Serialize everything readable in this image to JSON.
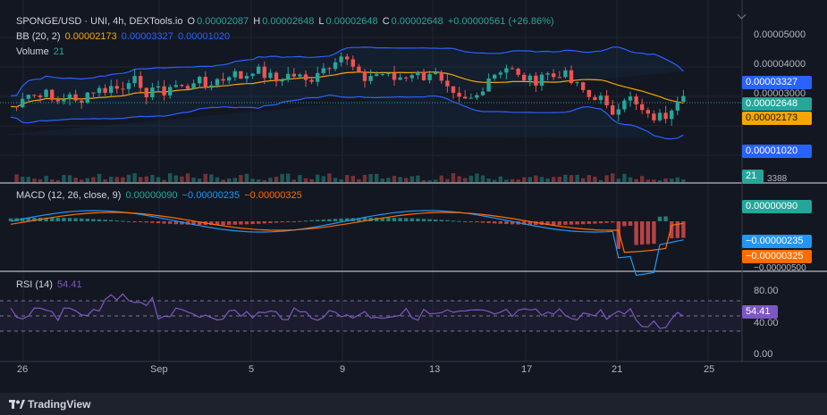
{
  "header": {
    "symbol": "SPONGE/USD · UNI, 4h, DEXTools.io",
    "o_label": "O",
    "o_value": "0.00002087",
    "h_label": "H",
    "h_value": "0.00002648",
    "l_label": "L",
    "l_value": "0.00002648",
    "c_label": "C",
    "c_value": "0.00002648",
    "change": "+0.00000561 (+26.86%)",
    "bb_label": "BB (20, 2)",
    "bb_basis": "0.00002173",
    "bb_upper": "0.00003327",
    "bb_lower": "0.00001020",
    "volume_label": "Volume",
    "volume_value": "21"
  },
  "macd": {
    "label": "MACD (12, 26, close, 9)",
    "hist": "0.00000090",
    "macd": "−0.00000235",
    "signal": "−0.00000325"
  },
  "rsi": {
    "label": "RSI (14)",
    "value": "54.41"
  },
  "price_axis": {
    "ticks": [
      "0.00005000",
      "0.00004000",
      "0.00003000"
    ],
    "tag_upper": "0.00003327",
    "tag_close": "0.00002648",
    "tag_basis": "0.00002173",
    "tag_lower": "0.00001020",
    "tag_volume": "21",
    "volume_tick": "3388"
  },
  "macd_axis": {
    "tag_hist": "0.00000090",
    "tag_macd": "−0.00000235",
    "tag_signal": "−0.00000325",
    "tick": "−0.00000500"
  },
  "rsi_axis": {
    "ticks": [
      "80.00",
      "40.00",
      "0.00"
    ],
    "tag": "54.41"
  },
  "time_axis": [
    "26",
    "Sep",
    "5",
    "9",
    "13",
    "17",
    "21",
    "25"
  ],
  "colors": {
    "up": "#26a69a",
    "down": "#ef5350",
    "bb_band": "#2962ff",
    "bb_basis": "#f7a600",
    "macd_line": "#2196f3",
    "signal_line": "#ff6d00",
    "rsi_line": "#7e57c2"
  },
  "footer": {
    "brand": "TradingView"
  }
}
